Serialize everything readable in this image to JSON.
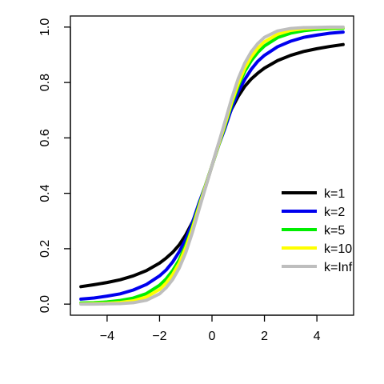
{
  "chart_data": {
    "type": "line",
    "title": "",
    "xlabel": "",
    "ylabel": "",
    "xlim": [
      -5.4,
      5.4
    ],
    "ylim": [
      -0.04,
      1.04
    ],
    "x_ticks": [
      -4,
      -2,
      0,
      2,
      4
    ],
    "x_tick_labels": [
      "−4",
      "−2",
      "0",
      "2",
      "4"
    ],
    "y_ticks": [
      0.0,
      0.2,
      0.4,
      0.6,
      0.8,
      1.0
    ],
    "y_tick_labels": [
      "0.0",
      "0.2",
      "0.4",
      "0.6",
      "0.8",
      "1.0"
    ],
    "grid": false,
    "legend_position": "right",
    "series": [
      {
        "name": "k=1",
        "color": "#000000",
        "x": [
          -5,
          -4.5,
          -4,
          -3.5,
          -3,
          -2.5,
          -2,
          -1.75,
          -1.5,
          -1.25,
          -1,
          -0.75,
          -0.5,
          -0.25,
          0,
          0.25,
          0.5,
          0.75,
          1,
          1.25,
          1.5,
          1.75,
          2,
          2.5,
          3,
          3.5,
          4,
          4.5,
          5
        ],
        "y": [
          0.063,
          0.07,
          0.078,
          0.088,
          0.102,
          0.121,
          0.148,
          0.166,
          0.187,
          0.214,
          0.25,
          0.295,
          0.352,
          0.422,
          0.5,
          0.578,
          0.648,
          0.705,
          0.75,
          0.786,
          0.813,
          0.834,
          0.852,
          0.879,
          0.898,
          0.912,
          0.922,
          0.93,
          0.937
        ]
      },
      {
        "name": "k=2",
        "color": "#0000ee",
        "x": [
          -5,
          -4.5,
          -4,
          -3.5,
          -3,
          -2.5,
          -2,
          -1.75,
          -1.5,
          -1.25,
          -1,
          -0.75,
          -0.5,
          -0.25,
          0,
          0.25,
          0.5,
          0.75,
          1,
          1.25,
          1.5,
          1.75,
          2,
          2.5,
          3,
          3.5,
          4,
          4.5,
          5
        ],
        "y": [
          0.018,
          0.022,
          0.029,
          0.037,
          0.051,
          0.071,
          0.102,
          0.123,
          0.152,
          0.189,
          0.234,
          0.293,
          0.364,
          0.428,
          0.5,
          0.572,
          0.636,
          0.707,
          0.766,
          0.811,
          0.848,
          0.877,
          0.898,
          0.929,
          0.949,
          0.963,
          0.971,
          0.978,
          0.982
        ]
      },
      {
        "name": "k=5",
        "color": "#00ee00",
        "x": [
          -5,
          -4.5,
          -4,
          -3.5,
          -3,
          -2.5,
          -2,
          -1.75,
          -1.5,
          -1.25,
          -1,
          -0.75,
          -0.5,
          -0.25,
          0,
          0.25,
          0.5,
          0.75,
          1,
          1.25,
          1.5,
          1.75,
          2,
          2.5,
          3,
          3.5,
          4,
          4.5,
          5
        ],
        "y": [
          0.004,
          0.005,
          0.008,
          0.013,
          0.022,
          0.038,
          0.068,
          0.091,
          0.121,
          0.16,
          0.213,
          0.278,
          0.355,
          0.427,
          0.5,
          0.573,
          0.645,
          0.722,
          0.787,
          0.84,
          0.879,
          0.909,
          0.932,
          0.962,
          0.978,
          0.987,
          0.992,
          0.995,
          0.996
        ]
      },
      {
        "name": "k=10",
        "color": "#ffff00",
        "x": [
          -5,
          -4.5,
          -4,
          -3.5,
          -3,
          -2.5,
          -2,
          -1.75,
          -1.5,
          -1.25,
          -1,
          -0.75,
          -0.5,
          -0.25,
          0,
          0.25,
          0.5,
          0.75,
          1,
          1.25,
          1.5,
          1.75,
          2,
          2.5,
          3,
          3.5,
          4,
          4.5,
          5
        ],
        "y": [
          0.001,
          0.002,
          0.003,
          0.006,
          0.012,
          0.026,
          0.053,
          0.076,
          0.107,
          0.148,
          0.204,
          0.272,
          0.35,
          0.425,
          0.5,
          0.575,
          0.65,
          0.728,
          0.796,
          0.852,
          0.893,
          0.924,
          0.947,
          0.974,
          0.988,
          0.994,
          0.997,
          0.998,
          0.999
        ]
      },
      {
        "name": "k=Inf",
        "color": "#bebebe",
        "x": [
          -5,
          -4.5,
          -4,
          -3.5,
          -3,
          -2.5,
          -2,
          -1.75,
          -1.5,
          -1.25,
          -1,
          -0.75,
          -0.5,
          -0.25,
          0,
          0.25,
          0.5,
          0.75,
          1,
          1.25,
          1.5,
          1.75,
          2,
          2.5,
          3,
          3.5,
          4,
          4.5,
          5
        ],
        "y": [
          0.0,
          0.0,
          0.001,
          0.002,
          0.005,
          0.014,
          0.037,
          0.059,
          0.089,
          0.13,
          0.186,
          0.258,
          0.34,
          0.42,
          0.5,
          0.58,
          0.66,
          0.742,
          0.814,
          0.87,
          0.911,
          0.941,
          0.963,
          0.986,
          0.995,
          0.998,
          0.999,
          1.0,
          1.0
        ]
      }
    ]
  }
}
